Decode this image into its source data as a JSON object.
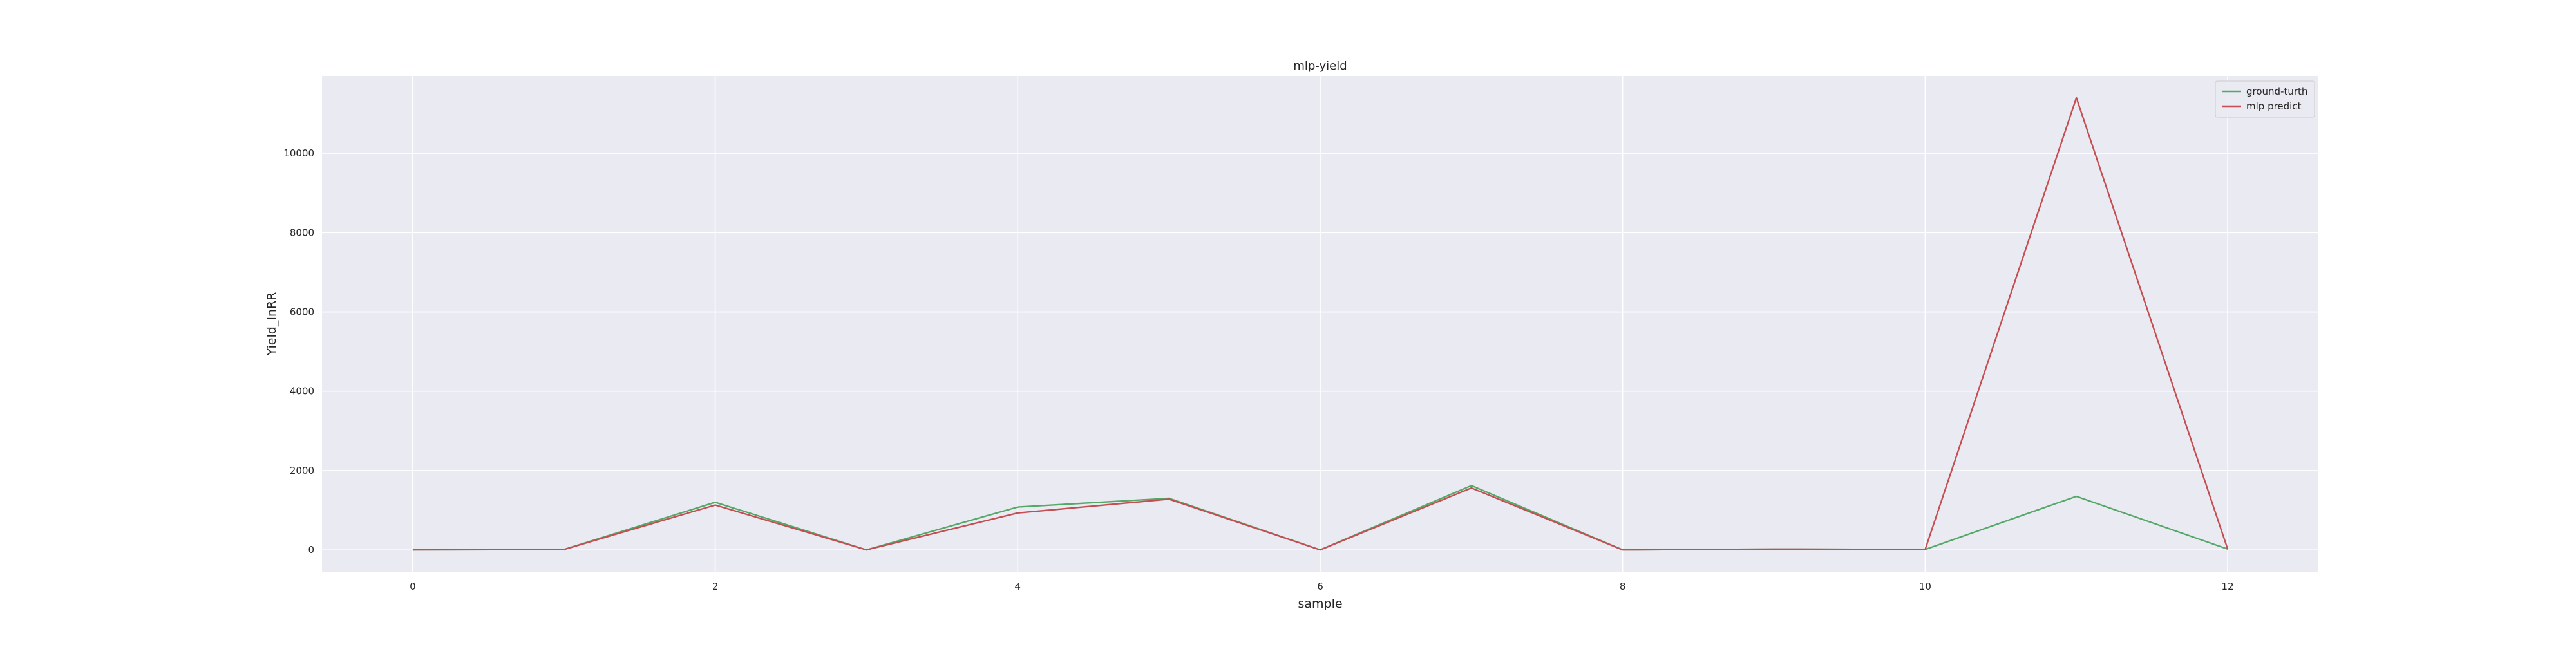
{
  "chart_data": {
    "type": "line",
    "title": "mlp-yield",
    "xlabel": "sample",
    "ylabel": "Yield_InRR",
    "xlim": [
      -0.6,
      12.6
    ],
    "ylim": [
      -550,
      11950
    ],
    "x_ticks": [
      0,
      2,
      4,
      6,
      8,
      10,
      12
    ],
    "y_ticks": [
      0,
      2000,
      4000,
      6000,
      8000,
      10000
    ],
    "x_tick_labels": [
      "0",
      "2",
      "4",
      "6",
      "8",
      "10",
      "12"
    ],
    "y_tick_labels": [
      "0",
      "2000",
      "4000",
      "6000",
      "8000",
      "10000"
    ],
    "grid": true,
    "legend_position": "top-right",
    "x": [
      0,
      1,
      2,
      3,
      4,
      5,
      6,
      7,
      8,
      9,
      10,
      11,
      12
    ],
    "series": [
      {
        "name": "ground-turth",
        "color": "#55a868",
        "values": [
          0,
          10,
          1200,
          0,
          1080,
          1300,
          0,
          1620,
          0,
          20,
          10,
          1350,
          20
        ]
      },
      {
        "name": "mlp predict",
        "color": "#c44e52",
        "values": [
          0,
          10,
          1130,
          0,
          930,
          1280,
          0,
          1560,
          0,
          20,
          10,
          11400,
          20
        ]
      }
    ],
    "plot_background": "#eaeaf2",
    "grid_color": "#ffffff"
  }
}
